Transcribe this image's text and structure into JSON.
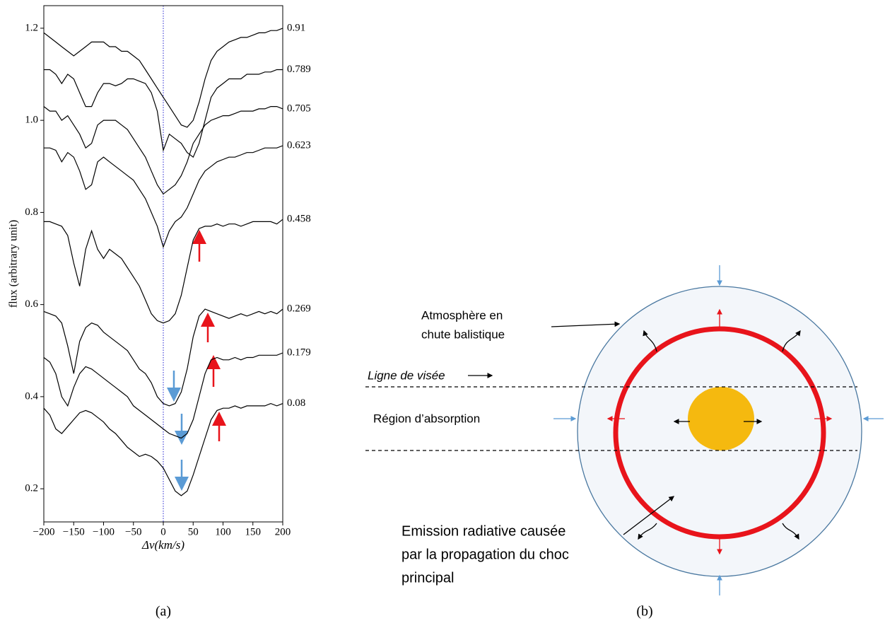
{
  "chart_data": {
    "type": "line",
    "xlabel": "Δv(km/s)",
    "ylabel": "flux (arbitrary unit)",
    "xlim": [
      -200,
      200
    ],
    "ylim": [
      0.128,
      1.249
    ],
    "xticks": [
      {
        "value": -200,
        "label": "−200"
      },
      {
        "value": -150,
        "label": "−150"
      },
      {
        "value": -100,
        "label": "−100"
      },
      {
        "value": -50,
        "label": "−50"
      },
      0,
      50,
      100,
      150,
      200
    ],
    "yticks": [
      0.2,
      0.4,
      0.6,
      0.8,
      {
        "value": 1,
        "label": "1.0"
      },
      1.2
    ],
    "color": "#000000",
    "x": [
      -200,
      -190,
      -180,
      -170,
      -160,
      -150,
      -140,
      -130,
      -120,
      -110,
      -100,
      -90,
      -80,
      -70,
      -60,
      -50,
      -40,
      -30,
      -20,
      -10,
      0,
      10,
      20,
      30,
      40,
      50,
      60,
      70,
      80,
      90,
      100,
      110,
      120,
      130,
      140,
      150,
      160,
      170,
      180,
      190,
      200
    ],
    "series": [
      {
        "name": "0.91",
        "values": [
          1.19,
          1.18,
          1.17,
          1.16,
          1.15,
          1.14,
          1.15,
          1.16,
          1.17,
          1.17,
          1.17,
          1.16,
          1.16,
          1.15,
          1.15,
          1.14,
          1.13,
          1.11,
          1.09,
          1.07,
          1.05,
          1.03,
          1.01,
          0.99,
          0.985,
          1.0,
          1.04,
          1.09,
          1.13,
          1.15,
          1.16,
          1.17,
          1.175,
          1.18,
          1.18,
          1.185,
          1.19,
          1.19,
          1.195,
          1.195,
          1.2
        ]
      },
      {
        "name": "0.789",
        "values": [
          1.11,
          1.11,
          1.1,
          1.08,
          1.1,
          1.09,
          1.06,
          1.03,
          1.03,
          1.06,
          1.08,
          1.08,
          1.075,
          1.08,
          1.09,
          1.09,
          1.085,
          1.08,
          1.06,
          1.02,
          0.935,
          0.97,
          0.96,
          0.95,
          0.93,
          0.92,
          0.95,
          1.0,
          1.05,
          1.07,
          1.08,
          1.09,
          1.09,
          1.09,
          1.1,
          1.1,
          1.1,
          1.105,
          1.105,
          1.11,
          1.11
        ]
      },
      {
        "name": "0.705",
        "values": [
          1.03,
          1.02,
          1.02,
          1.0,
          1.01,
          0.99,
          0.97,
          0.94,
          0.95,
          0.99,
          1.0,
          1.0,
          1.0,
          0.99,
          0.98,
          0.96,
          0.94,
          0.92,
          0.89,
          0.86,
          0.84,
          0.85,
          0.86,
          0.88,
          0.91,
          0.95,
          0.97,
          0.99,
          1.0,
          1.005,
          1.01,
          1.01,
          1.015,
          1.02,
          1.02,
          1.02,
          1.025,
          1.025,
          1.03,
          1.03,
          1.025
        ]
      },
      {
        "name": "0.623",
        "values": [
          0.94,
          0.94,
          0.935,
          0.91,
          0.93,
          0.92,
          0.89,
          0.85,
          0.86,
          0.91,
          0.92,
          0.91,
          0.9,
          0.89,
          0.88,
          0.87,
          0.85,
          0.83,
          0.8,
          0.77,
          0.725,
          0.76,
          0.78,
          0.79,
          0.81,
          0.84,
          0.87,
          0.89,
          0.9,
          0.91,
          0.915,
          0.92,
          0.92,
          0.925,
          0.93,
          0.93,
          0.935,
          0.94,
          0.94,
          0.94,
          0.945
        ]
      },
      {
        "name": "0.458",
        "values": [
          0.78,
          0.78,
          0.775,
          0.77,
          0.75,
          0.69,
          0.64,
          0.72,
          0.76,
          0.72,
          0.7,
          0.72,
          0.71,
          0.7,
          0.68,
          0.66,
          0.64,
          0.61,
          0.58,
          0.565,
          0.56,
          0.565,
          0.58,
          0.62,
          0.68,
          0.74,
          0.765,
          0.77,
          0.77,
          0.775,
          0.77,
          0.775,
          0.775,
          0.77,
          0.775,
          0.78,
          0.78,
          0.78,
          0.78,
          0.775,
          0.785
        ]
      },
      {
        "name": "0.269",
        "values": [
          0.585,
          0.58,
          0.575,
          0.56,
          0.51,
          0.45,
          0.52,
          0.55,
          0.56,
          0.555,
          0.54,
          0.53,
          0.52,
          0.51,
          0.5,
          0.48,
          0.46,
          0.45,
          0.43,
          0.4,
          0.385,
          0.38,
          0.385,
          0.41,
          0.46,
          0.53,
          0.575,
          0.59,
          0.585,
          0.58,
          0.575,
          0.57,
          0.575,
          0.58,
          0.575,
          0.58,
          0.585,
          0.58,
          0.585,
          0.58,
          0.59
        ]
      },
      {
        "name": "0.179",
        "values": [
          0.485,
          0.475,
          0.45,
          0.4,
          0.38,
          0.42,
          0.45,
          0.465,
          0.46,
          0.45,
          0.44,
          0.43,
          0.42,
          0.41,
          0.4,
          0.38,
          0.37,
          0.36,
          0.35,
          0.34,
          0.33,
          0.32,
          0.315,
          0.31,
          0.32,
          0.35,
          0.4,
          0.45,
          0.48,
          0.485,
          0.48,
          0.48,
          0.485,
          0.48,
          0.485,
          0.485,
          0.49,
          0.49,
          0.49,
          0.49,
          0.495
        ]
      },
      {
        "name": "0.08",
        "values": [
          0.375,
          0.36,
          0.33,
          0.32,
          0.335,
          0.35,
          0.365,
          0.37,
          0.365,
          0.355,
          0.345,
          0.33,
          0.32,
          0.305,
          0.29,
          0.28,
          0.27,
          0.275,
          0.27,
          0.26,
          0.245,
          0.22,
          0.195,
          0.185,
          0.195,
          0.23,
          0.27,
          0.31,
          0.35,
          0.37,
          0.375,
          0.375,
          0.38,
          0.375,
          0.38,
          0.38,
          0.38,
          0.38,
          0.385,
          0.38,
          0.385
        ]
      }
    ]
  },
  "diagram": {
    "atmosphere": [
      "Atmosphère en",
      "chute balistique"
    ],
    "line_of_sight": "Ligne de visée",
    "absorption": "Région d’absorption",
    "emission": [
      "Emission radiative causée",
      "par la propagation du choc",
      "principal"
    ]
  },
  "captions": [
    "(a)",
    "(b)"
  ]
}
